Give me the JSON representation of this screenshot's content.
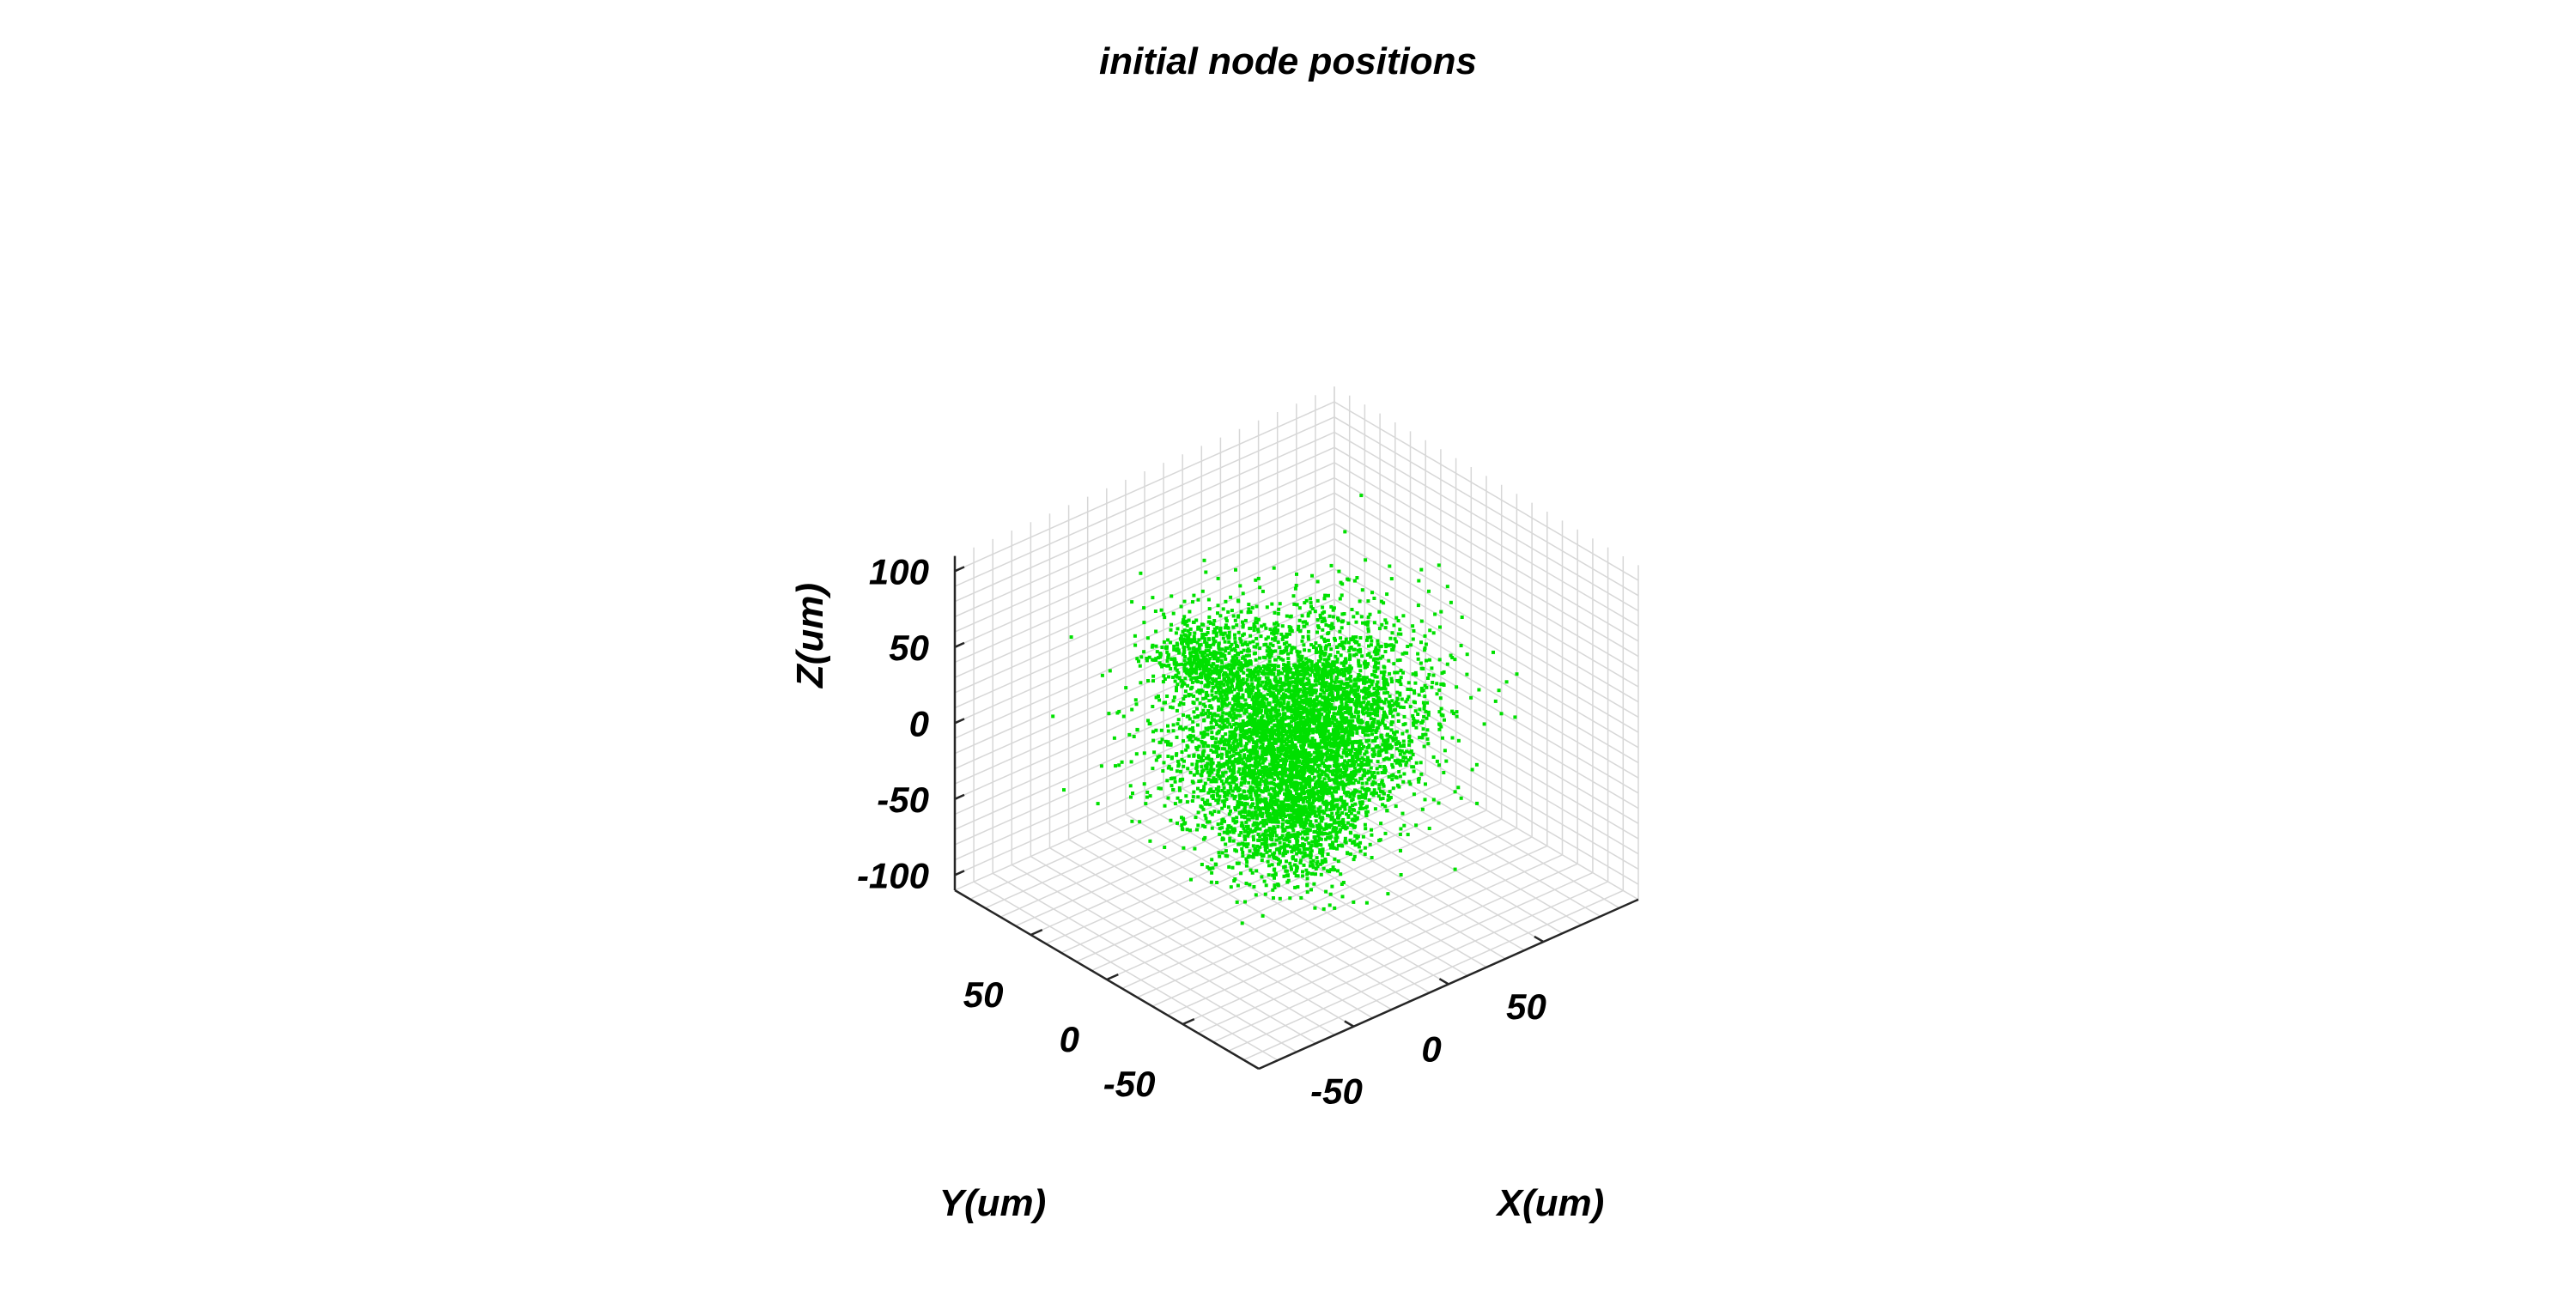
{
  "chart_data": {
    "type": "scatter",
    "projection": "3d",
    "title": "initial node positions",
    "xlabel": "X(um)",
    "ylabel": "Y(um)",
    "zlabel": "Z(um)",
    "xlim": [
      -100,
      100
    ],
    "ylim": [
      -100,
      100
    ],
    "zlim": [
      -110,
      110
    ],
    "x_ticks": [
      -50,
      0,
      50
    ],
    "y_ticks": [
      -50,
      0,
      50
    ],
    "z_ticks": [
      -100,
      -50,
      0,
      50,
      100
    ],
    "grid": true,
    "marker_color": "#00e000",
    "series": [
      {
        "description": "point cloud of initial node positions; approx. 6000 points centred near origin",
        "x_mean": 0,
        "y_mean": 0,
        "z_mean": 0,
        "x_std": 26,
        "y_std": 24,
        "z_std": 30,
        "count": 6000
      }
    ]
  },
  "colors": {
    "grid": "#d7d7d7",
    "axis": "#262626",
    "points": "#00e000"
  }
}
